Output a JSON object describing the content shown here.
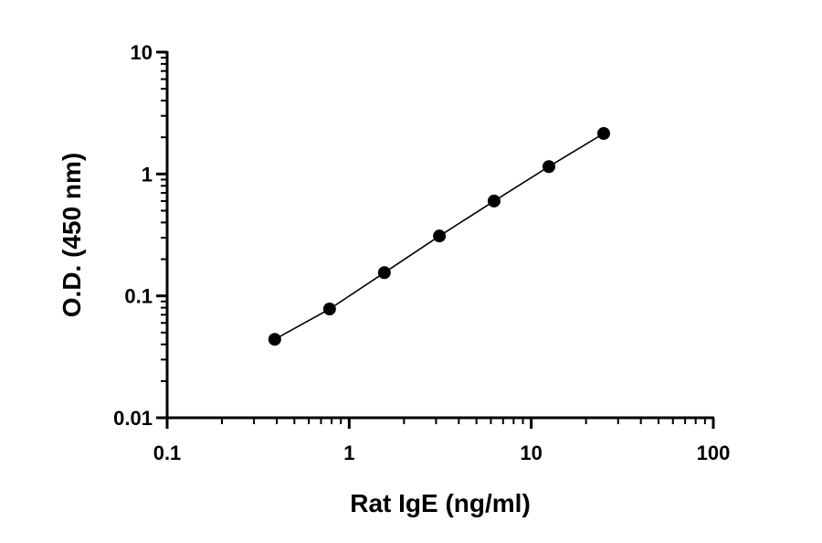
{
  "chart_data": {
    "type": "scatter",
    "xlabel": "Rat IgE (ng/ml)",
    "ylabel": "O.D. (450 nm)",
    "x_scale": "log",
    "y_scale": "log",
    "xlim": [
      0.1,
      100
    ],
    "ylim": [
      0.01,
      10
    ],
    "x_ticks": [
      "0.1",
      "1",
      "10",
      "100"
    ],
    "y_ticks": [
      "0.01",
      "0.1",
      "1",
      "10"
    ],
    "grid": false,
    "series": [
      {
        "x": [
          0.39,
          0.78,
          1.56,
          3.13,
          6.25,
          12.5,
          25
        ],
        "y": [
          0.044,
          0.078,
          0.155,
          0.31,
          0.6,
          1.15,
          2.15
        ]
      }
    ],
    "line_through_points": true
  }
}
